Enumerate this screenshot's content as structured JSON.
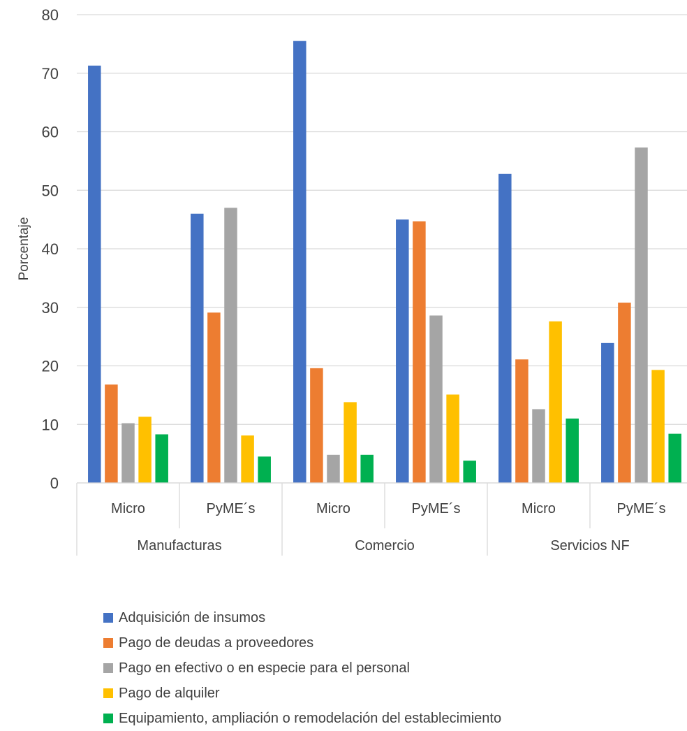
{
  "chart_data": {
    "type": "bar",
    "ylabel": "Porcentaje",
    "ylim": [
      0,
      80
    ],
    "yticks": [
      "0",
      "10",
      "20",
      "30",
      "40",
      "50",
      "60",
      "70",
      "80"
    ],
    "grid": true,
    "legend_position": "bottom",
    "groups": [
      {
        "name": "Manufacturas",
        "categories": [
          "Micro",
          "PyME´s"
        ]
      },
      {
        "name": "Comercio",
        "categories": [
          "Micro",
          "PyME´s"
        ]
      },
      {
        "name": "Servicios NF",
        "categories": [
          "Micro",
          "PyME´s"
        ]
      }
    ],
    "categories": [
      "Micro",
      "PyME´s",
      "Micro",
      "PyME´s",
      "Micro",
      "PyME´s"
    ],
    "series": [
      {
        "name": "Adquisición de insumos",
        "color": "#4472C4",
        "values": [
          71.3,
          46.0,
          75.5,
          45.0,
          52.8,
          23.9
        ]
      },
      {
        "name": "Pago de deudas a proveedores",
        "color": "#ED7D31",
        "values": [
          16.8,
          29.1,
          19.6,
          44.7,
          21.1,
          30.8
        ]
      },
      {
        "name": "Pago en efectivo o en especie para el personal",
        "color": "#A5A5A5",
        "values": [
          10.2,
          47.0,
          4.8,
          28.6,
          12.6,
          57.3
        ]
      },
      {
        "name": "Pago de alquiler",
        "color": "#FFC000",
        "values": [
          11.3,
          8.1,
          13.8,
          15.1,
          27.6,
          19.3
        ]
      },
      {
        "name": "Equipamiento, ampliación o remodelación del establecimiento",
        "color": "#00B050",
        "values": [
          8.3,
          4.5,
          4.8,
          3.8,
          11.0,
          8.4
        ]
      }
    ]
  }
}
